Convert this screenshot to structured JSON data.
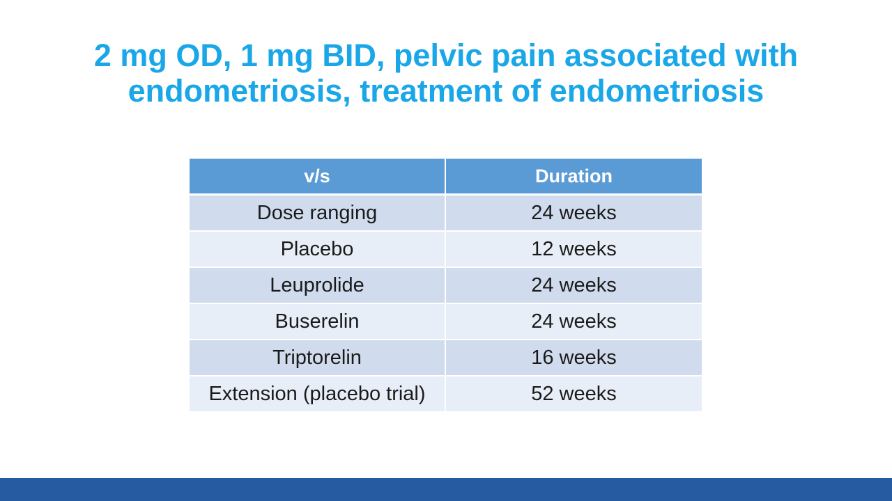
{
  "slide": {
    "title_lines": [
      "2 mg OD, 1 mg BID, pelvic pain associated with",
      "endometriosis, treatment of endometriosis"
    ]
  },
  "table": {
    "headers": [
      "v/s",
      "Duration"
    ],
    "rows": [
      {
        "comparator": "Dose ranging",
        "duration": "24 weeks"
      },
      {
        "comparator": "Placebo",
        "duration": "12 weeks"
      },
      {
        "comparator": "Leuprolide",
        "duration": "24 weeks"
      },
      {
        "comparator": "Buserelin",
        "duration": "24 weeks"
      },
      {
        "comparator": "Triptorelin",
        "duration": "16 weeks"
      },
      {
        "comparator": "Extension (placebo trial)",
        "duration": "52 weeks"
      }
    ]
  },
  "colors": {
    "title": "#1aa7e8",
    "header_background": "#5b9bd5",
    "row_dark": "#d0dcee",
    "row_light": "#e8eef7",
    "footer_bar": "#265ba1"
  }
}
